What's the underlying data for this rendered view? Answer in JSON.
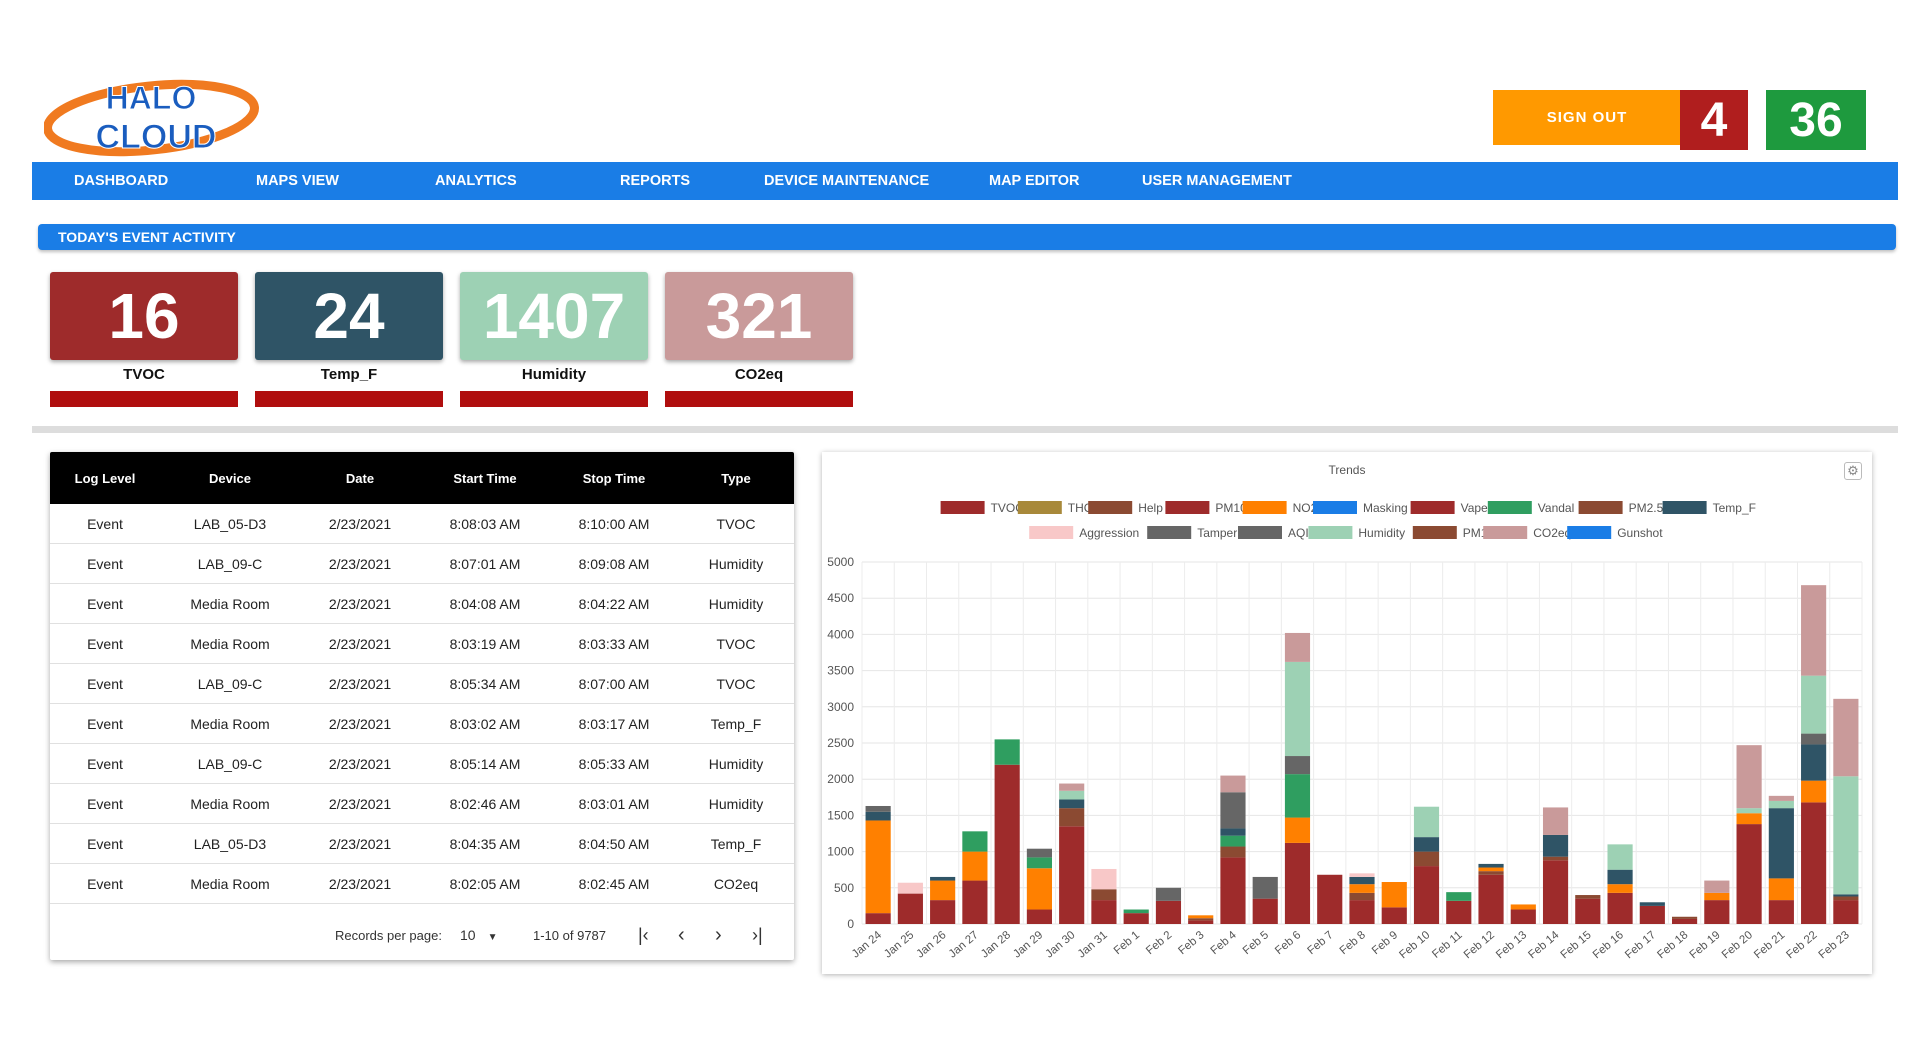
{
  "header": {
    "logo_line1": "HALO",
    "logo_line2": "CLOUD",
    "signout_label": "SIGN OUT",
    "count_red": "4",
    "count_green": "36"
  },
  "nav": [
    "DASHBOARD",
    "MAPS VIEW",
    "ANALYTICS",
    "REPORTS",
    "DEVICE MAINTENANCE",
    "MAP EDITOR",
    "USER MANAGEMENT"
  ],
  "section_title": "TODAY'S EVENT ACTIVITY",
  "tiles": [
    {
      "value": "16",
      "label": "TVOC",
      "color": "#9e2b2b"
    },
    {
      "value": "24",
      "label": "Temp_F",
      "color": "#2f5466"
    },
    {
      "value": "1407",
      "label": "Humidity",
      "color": "#9dd1b4"
    },
    {
      "value": "321",
      "label": "CO2eq",
      "color": "#c99a9a"
    }
  ],
  "table": {
    "headers": [
      "Log Level",
      "Device",
      "Date",
      "Start Time",
      "Stop Time",
      "Type"
    ],
    "rows": [
      [
        "Event",
        "LAB_05-D3",
        "2/23/2021",
        "8:08:03 AM",
        "8:10:00 AM",
        "TVOC"
      ],
      [
        "Event",
        "LAB_09-C",
        "2/23/2021",
        "8:07:01 AM",
        "8:09:08 AM",
        "Humidity"
      ],
      [
        "Event",
        "Media Room",
        "2/23/2021",
        "8:04:08 AM",
        "8:04:22 AM",
        "Humidity"
      ],
      [
        "Event",
        "Media Room",
        "2/23/2021",
        "8:03:19 AM",
        "8:03:33 AM",
        "TVOC"
      ],
      [
        "Event",
        "LAB_09-C",
        "2/23/2021",
        "8:05:34 AM",
        "8:07:00 AM",
        "TVOC"
      ],
      [
        "Event",
        "Media Room",
        "2/23/2021",
        "8:03:02 AM",
        "8:03:17 AM",
        "Temp_F"
      ],
      [
        "Event",
        "LAB_09-C",
        "2/23/2021",
        "8:05:14 AM",
        "8:05:33 AM",
        "Humidity"
      ],
      [
        "Event",
        "Media Room",
        "2/23/2021",
        "8:02:46 AM",
        "8:03:01 AM",
        "Humidity"
      ],
      [
        "Event",
        "LAB_05-D3",
        "2/23/2021",
        "8:04:35 AM",
        "8:04:50 AM",
        "Temp_F"
      ],
      [
        "Event",
        "Media Room",
        "2/23/2021",
        "8:02:05 AM",
        "8:02:45 AM",
        "CO2eq"
      ]
    ],
    "records_per_page_label": "Records per page:",
    "records_per_page": "10",
    "range_text": "1-10 of 9787"
  },
  "chart_data": {
    "type": "bar",
    "stacked": true,
    "title": "Trends",
    "ylim": [
      0,
      5000
    ],
    "yticks": [
      0,
      500,
      1000,
      1500,
      2000,
      2500,
      3000,
      3500,
      4000,
      4500,
      5000
    ],
    "grid": true,
    "legend_position": "top",
    "categories": [
      "Jan 24",
      "Jan 25",
      "Jan 26",
      "Jan 27",
      "Jan 28",
      "Jan 29",
      "Jan 30",
      "Jan 31",
      "Feb 1",
      "Feb 2",
      "Feb 3",
      "Feb 4",
      "Feb 5",
      "Feb 6",
      "Feb 7",
      "Feb 8",
      "Feb 9",
      "Feb 10",
      "Feb 11",
      "Feb 12",
      "Feb 13",
      "Feb 14",
      "Feb 15",
      "Feb 16",
      "Feb 17",
      "Feb 18",
      "Feb 19",
      "Feb 20",
      "Feb 21",
      "Feb 22",
      "Feb 23"
    ],
    "legend": [
      {
        "name": "TVOC",
        "color": "#9e2b2b"
      },
      {
        "name": "THC",
        "color": "#a8893a"
      },
      {
        "name": "Help",
        "color": "#8b4a32"
      },
      {
        "name": "PM10",
        "color": "#9e2b2b"
      },
      {
        "name": "NO2",
        "color": "#ff8000"
      },
      {
        "name": "Masking",
        "color": "#1a7de6"
      },
      {
        "name": "Vape",
        "color": "#9e2b2b"
      },
      {
        "name": "Vandal",
        "color": "#2f9e60"
      },
      {
        "name": "PM2.5",
        "color": "#8b4a32"
      },
      {
        "name": "Temp_F",
        "color": "#2f5466"
      },
      {
        "name": "Aggression",
        "color": "#f8c8c8"
      },
      {
        "name": "Tamper",
        "color": "#666666"
      },
      {
        "name": "AQI",
        "color": "#666666"
      },
      {
        "name": "Humidity",
        "color": "#9dd1b4"
      },
      {
        "name": "PM1",
        "color": "#8b4a32"
      },
      {
        "name": "CO2eq",
        "color": "#c99a9a"
      },
      {
        "name": "Gunshot",
        "color": "#1a7de6"
      }
    ],
    "series": [
      {
        "name": "TVOC",
        "color": "#9e2b2b",
        "values": [
          150,
          420,
          330,
          600,
          2200,
          200,
          1350,
          330,
          150,
          320,
          50,
          920,
          350,
          1120,
          680,
          330,
          230,
          800,
          320,
          680,
          200,
          880,
          350,
          430,
          250,
          70,
          330,
          1380,
          330,
          1680,
          330
        ]
      },
      {
        "name": "Help",
        "color": "#8b4a32",
        "values": [
          0,
          0,
          0,
          0,
          0,
          0,
          250,
          150,
          0,
          0,
          30,
          150,
          0,
          0,
          0,
          100,
          0,
          200,
          0,
          50,
          0,
          50,
          50,
          0,
          0,
          30,
          0,
          0,
          0,
          0,
          50
        ]
      },
      {
        "name": "NO2",
        "color": "#ff8000",
        "values": [
          1280,
          0,
          270,
          400,
          0,
          570,
          0,
          0,
          0,
          0,
          40,
          0,
          0,
          350,
          0,
          120,
          350,
          0,
          0,
          50,
          70,
          0,
          0,
          120,
          0,
          0,
          100,
          150,
          300,
          300,
          0
        ]
      },
      {
        "name": "Vandal",
        "color": "#2f9e60",
        "values": [
          0,
          0,
          0,
          280,
          350,
          150,
          0,
          0,
          50,
          0,
          0,
          150,
          0,
          600,
          0,
          0,
          0,
          0,
          120,
          0,
          0,
          0,
          0,
          0,
          0,
          0,
          0,
          0,
          0,
          0,
          0
        ]
      },
      {
        "name": "Temp_F",
        "color": "#2f5466",
        "values": [
          120,
          0,
          50,
          0,
          0,
          0,
          120,
          0,
          0,
          0,
          0,
          100,
          0,
          0,
          0,
          100,
          0,
          200,
          0,
          50,
          0,
          300,
          0,
          200,
          50,
          0,
          0,
          0,
          970,
          500,
          30
        ]
      },
      {
        "name": "Tamper",
        "color": "#666666",
        "values": [
          80,
          0,
          0,
          0,
          0,
          120,
          0,
          0,
          0,
          180,
          0,
          500,
          300,
          250,
          0,
          0,
          0,
          0,
          0,
          0,
          0,
          0,
          0,
          0,
          0,
          0,
          0,
          0,
          0,
          150,
          0
        ]
      },
      {
        "name": "Humidity",
        "color": "#9dd1b4",
        "values": [
          0,
          0,
          0,
          0,
          0,
          0,
          120,
          0,
          0,
          0,
          0,
          0,
          0,
          1300,
          0,
          0,
          0,
          420,
          0,
          0,
          0,
          0,
          0,
          350,
          0,
          0,
          0,
          70,
          100,
          800,
          1630
        ]
      },
      {
        "name": "Aggression",
        "color": "#f8c8c8",
        "values": [
          0,
          150,
          0,
          0,
          0,
          0,
          0,
          280,
          0,
          0,
          0,
          0,
          0,
          0,
          0,
          50,
          0,
          0,
          0,
          0,
          0,
          0,
          0,
          0,
          0,
          0,
          0,
          0,
          0,
          0,
          0
        ]
      },
      {
        "name": "CO2eq",
        "color": "#c99a9a",
        "values": [
          0,
          0,
          0,
          0,
          0,
          0,
          100,
          0,
          0,
          0,
          0,
          230,
          0,
          400,
          0,
          0,
          0,
          0,
          0,
          0,
          0,
          380,
          0,
          0,
          0,
          0,
          170,
          870,
          70,
          1250,
          1070
        ]
      }
    ]
  }
}
